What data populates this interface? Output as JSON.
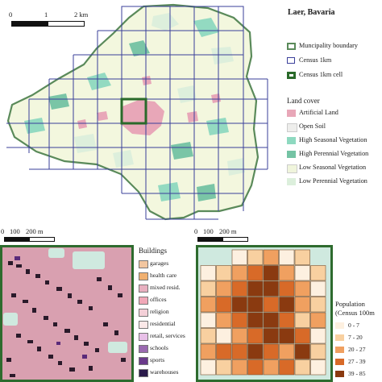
{
  "main_map": {
    "title": "Laer, Bavaria",
    "scalebar": {
      "ticks": [
        "0",
        "1",
        "2 km"
      ]
    }
  },
  "legend": {
    "boundary_items": [
      {
        "label": "Muncipality boundary",
        "color": "#5a8a5a"
      },
      {
        "label": "Census 1km",
        "color": "#3a3f9a"
      },
      {
        "label": "Census 1km cell",
        "color": "#2a6a2a"
      }
    ],
    "land_cover_title": "Land cover",
    "land_cover": [
      {
        "label": "Artificial Land",
        "color": "#e8a7b8"
      },
      {
        "label": "Open Soil",
        "color": "#eeeeec"
      },
      {
        "label": "High Seasonal Vegetation",
        "color": "#8ed9c0"
      },
      {
        "label": "High Perennial Vegetation",
        "color": "#74c3a4"
      },
      {
        "label": "Low Seasonal Vegetation",
        "color": "#f0f5dc"
      },
      {
        "label": "Low Perennial Vegetation",
        "color": "#dcefdc"
      }
    ]
  },
  "inset_scalebars": {
    "left": {
      "ticks": [
        "0",
        "100",
        "200 m"
      ]
    },
    "right": {
      "ticks": [
        "0",
        "100",
        "200 m"
      ]
    }
  },
  "buildings_legend": {
    "title": "Buildings",
    "items": [
      {
        "label": "garages",
        "color": "#f2c6a0"
      },
      {
        "label": "health care",
        "color": "#f0b070"
      },
      {
        "label": "mixed resid.",
        "color": "#e8b0c0"
      },
      {
        "label": "offices",
        "color": "#f0a8b8"
      },
      {
        "label": "religion",
        "color": "#f4d0d8"
      },
      {
        "label": "residential",
        "color": "#fbe8e8"
      },
      {
        "label": "retail, services",
        "color": "#e8c0e8"
      },
      {
        "label": "schools",
        "color": "#9a6ab0"
      },
      {
        "label": "sports",
        "color": "#6a3a8a"
      },
      {
        "label": "warehouses",
        "color": "#2a1a4a"
      }
    ]
  },
  "population_legend": {
    "title_line1": "Population",
    "title_line2": "(Census 100m",
    "items": [
      {
        "label": "0 - 7",
        "color": "#fdf0e0"
      },
      {
        "label": "7 - 20",
        "color": "#f8d0a0"
      },
      {
        "label": "20 - 27",
        "color": "#f0a060"
      },
      {
        "label": "27 - 39",
        "color": "#d86a28"
      },
      {
        "label": "39 - 85",
        "color": "#8a3a10"
      }
    ]
  }
}
